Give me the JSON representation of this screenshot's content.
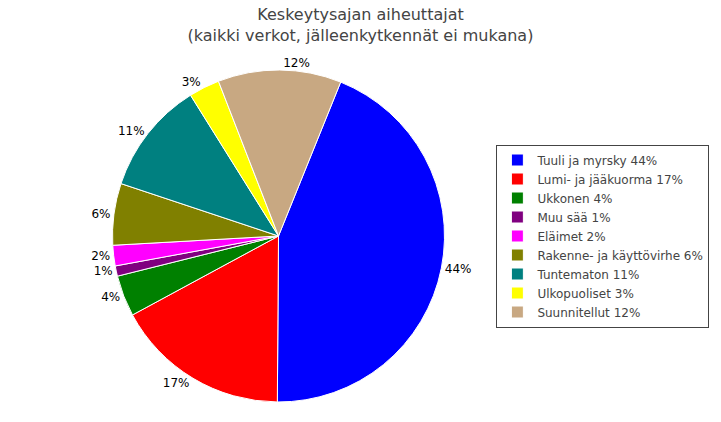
{
  "chart_data": {
    "type": "pie",
    "title": "Keskeytysajan aiheuttajat\n(kaikki verkot, jälleenkytkennät ei mukana)",
    "categories": [
      "Tuuli ja myrsky 44%",
      "Lumi- ja jääkuorma 17%",
      "Ukkonen 4%",
      "Muu sää 1%",
      "Eläimet 2%",
      "Rakenne- ja käyttövirhe 6%",
      "Tuntematon 11%",
      "Ulkopuoliset 3%",
      "Suunnitellut 12%"
    ],
    "values": [
      44,
      17,
      4,
      1,
      2,
      6,
      11,
      3,
      12
    ],
    "value_labels": [
      "44%",
      "17%",
      "4%",
      "1%",
      "2%",
      "6%",
      "11%",
      "3%",
      "12%"
    ],
    "colors": [
      "#0000FF",
      "#FF0000",
      "#008000",
      "#800080",
      "#FF00FF",
      "#808000",
      "#008080",
      "#FFFF00",
      "#C8A882"
    ],
    "data_labels": true,
    "legend": "right"
  }
}
